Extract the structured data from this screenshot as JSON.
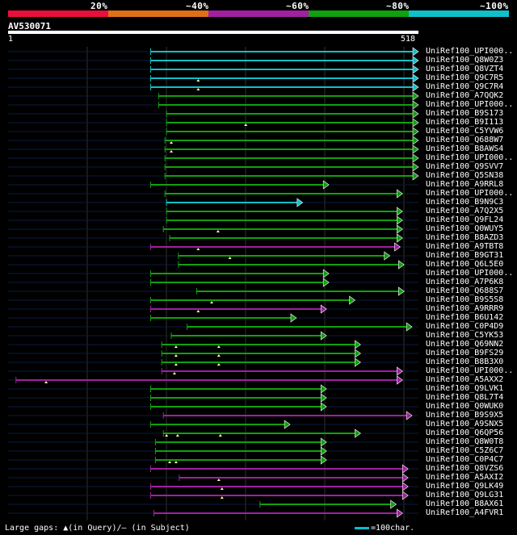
{
  "legend": [
    {
      "label": "20%",
      "color": "#e8103a"
    },
    {
      "label": "~40%",
      "color": "#e07018"
    },
    {
      "label": "~60%",
      "color": "#a020a0"
    },
    {
      "label": "~80%",
      "color": "#10a010"
    },
    {
      "label": "~100%",
      "color": "#10c0c8"
    }
  ],
  "query": {
    "id": "AV530071",
    "start": "1",
    "end": "518",
    "length": 518
  },
  "colors": {
    "background": "#000000",
    "guide": "#0a1a40",
    "grid": "#303030",
    "query_bar": "#ffffff"
  },
  "hits": [
    {
      "label": "UniRef100_UPI000..",
      "color": "#10c0c8",
      "start": 180,
      "end": 518,
      "gaps": []
    },
    {
      "label": "UniRef100_Q8W0Z3",
      "color": "#10c0c8",
      "start": 180,
      "end": 518,
      "gaps": []
    },
    {
      "label": "UniRef100_Q8VZT4",
      "color": "#10c0c8",
      "start": 180,
      "end": 518,
      "gaps": []
    },
    {
      "label": "UniRef100_Q9C7R5",
      "color": "#10c0c8",
      "start": 180,
      "end": 518,
      "gaps": [
        240
      ]
    },
    {
      "label": "UniRef100_Q9C7R4",
      "color": "#10c0c8",
      "start": 180,
      "end": 518,
      "gaps": [
        240
      ]
    },
    {
      "label": "UniRef100_A7QQK2",
      "color": "#10a010",
      "start": 190,
      "end": 518,
      "gaps": []
    },
    {
      "label": "UniRef100_UPI000..",
      "color": "#10a010",
      "start": 190,
      "end": 518,
      "gaps": []
    },
    {
      "label": "UniRef100_B9S173",
      "color": "#10a010",
      "start": 200,
      "end": 518,
      "gaps": []
    },
    {
      "label": "UniRef100_B9I113",
      "color": "#10a010",
      "start": 200,
      "end": 518,
      "gaps": [
        300
      ]
    },
    {
      "label": "UniRef100_C5YVW6",
      "color": "#10a010",
      "start": 200,
      "end": 518,
      "gaps": []
    },
    {
      "label": "UniRef100_Q688W7",
      "color": "#10a010",
      "start": 198,
      "end": 518,
      "gaps": [
        206
      ]
    },
    {
      "label": "UniRef100_B8AWS4",
      "color": "#10a010",
      "start": 198,
      "end": 518,
      "gaps": [
        206
      ]
    },
    {
      "label": "UniRef100_UPI000..",
      "color": "#10a010",
      "start": 198,
      "end": 518,
      "gaps": []
    },
    {
      "label": "UniRef100_Q9SVV7",
      "color": "#10a010",
      "start": 198,
      "end": 518,
      "gaps": []
    },
    {
      "label": "UniRef100_Q5SN38",
      "color": "#10a010",
      "start": 198,
      "end": 518,
      "gaps": []
    },
    {
      "label": "UniRef100_A9RRL8",
      "color": "#10a010",
      "start": 180,
      "end": 405,
      "gaps": []
    },
    {
      "label": "UniRef100_UPI000..",
      "color": "#10a010",
      "start": 198,
      "end": 498,
      "gaps": []
    },
    {
      "label": "UniRef100_B9N9C3",
      "color": "#10c0c8",
      "start": 200,
      "end": 372,
      "gaps": []
    },
    {
      "label": "UniRef100_A7Q2X5",
      "color": "#10a010",
      "start": 200,
      "end": 498,
      "gaps": []
    },
    {
      "label": "UniRef100_Q9FL24",
      "color": "#10a010",
      "start": 200,
      "end": 498,
      "gaps": []
    },
    {
      "label": "UniRef100_Q0WUY5",
      "color": "#10a010",
      "start": 196,
      "end": 498,
      "gaps": [
        265
      ]
    },
    {
      "label": "UniRef100_B8AZD3",
      "color": "#10a010",
      "start": 204,
      "end": 498,
      "gaps": []
    },
    {
      "label": "UniRef100_A9TBT8",
      "color": "#a020a0",
      "start": 180,
      "end": 495,
      "gaps": [
        240
      ]
    },
    {
      "label": "UniRef100_B9GT31",
      "color": "#10a010",
      "start": 215,
      "end": 482,
      "gaps": [
        280
      ]
    },
    {
      "label": "UniRef100_Q6L5E0",
      "color": "#10a010",
      "start": 215,
      "end": 500,
      "gaps": []
    },
    {
      "label": "UniRef100_UPI000..",
      "color": "#10a010",
      "start": 180,
      "end": 405,
      "gaps": []
    },
    {
      "label": "UniRef100_A7P6K8",
      "color": "#10a010",
      "start": 180,
      "end": 405,
      "gaps": []
    },
    {
      "label": "UniRef100_Q688S7",
      "color": "#10a010",
      "start": 238,
      "end": 500,
      "gaps": []
    },
    {
      "label": "UniRef100_B9S5S8",
      "color": "#10a010",
      "start": 180,
      "end": 438,
      "gaps": [
        257
      ]
    },
    {
      "label": "UniRef100_A9RRR9",
      "color": "#a020a0",
      "start": 180,
      "end": 402,
      "gaps": [
        240
      ]
    },
    {
      "label": "UniRef100_B6U142",
      "color": "#10a010",
      "start": 180,
      "end": 364,
      "gaps": []
    },
    {
      "label": "UniRef100_C0P4D9",
      "color": "#10a010",
      "start": 226,
      "end": 510,
      "gaps": []
    },
    {
      "label": "UniRef100_C5YK53",
      "color": "#10a010",
      "start": 206,
      "end": 402,
      "gaps": []
    },
    {
      "label": "UniRef100_Q69NN2",
      "color": "#10a010",
      "start": 194,
      "end": 445,
      "gaps": [
        212,
        266
      ]
    },
    {
      "label": "UniRef100_B9FS29",
      "color": "#10a010",
      "start": 194,
      "end": 445,
      "gaps": [
        212,
        266
      ]
    },
    {
      "label": "UniRef100_B8B3X0",
      "color": "#10a010",
      "start": 194,
      "end": 445,
      "gaps": [
        212,
        266
      ]
    },
    {
      "label": "UniRef100_UPI000..",
      "color": "#a020a0",
      "start": 194,
      "end": 498,
      "gaps": [
        210
      ]
    },
    {
      "label": "UniRef100_A5AXX2",
      "color": "#a020a0",
      "start": 10,
      "end": 498,
      "gaps": [
        48
      ]
    },
    {
      "label": "UniRef100_Q9LVK1",
      "color": "#10a010",
      "start": 180,
      "end": 402,
      "gaps": []
    },
    {
      "label": "UniRef100_Q8L7T4",
      "color": "#10a010",
      "start": 180,
      "end": 402,
      "gaps": []
    },
    {
      "label": "UniRef100_Q0WUK0",
      "color": "#10a010",
      "start": 180,
      "end": 402,
      "gaps": []
    },
    {
      "label": "UniRef100_B9S9X5",
      "color": "#a020a0",
      "start": 196,
      "end": 510,
      "gaps": []
    },
    {
      "label": "UniRef100_A9SNX5",
      "color": "#10a010",
      "start": 180,
      "end": 356,
      "gaps": []
    },
    {
      "label": "UniRef100_Q6QP56",
      "color": "#10a010",
      "start": 196,
      "end": 445,
      "gaps": [
        200,
        214,
        268
      ]
    },
    {
      "label": "UniRef100_Q8W0T8",
      "color": "#10a010",
      "start": 186,
      "end": 402,
      "gaps": []
    },
    {
      "label": "UniRef100_C5Z6C7",
      "color": "#10a010",
      "start": 186,
      "end": 402,
      "gaps": []
    },
    {
      "label": "UniRef100_C0P4C7",
      "color": "#10a010",
      "start": 186,
      "end": 402,
      "gaps": [
        204,
        212
      ]
    },
    {
      "label": "UniRef100_Q8VZS6",
      "color": "#a020a0",
      "start": 180,
      "end": 505,
      "gaps": []
    },
    {
      "label": "UniRef100_A5AXI2",
      "color": "#a020a0",
      "start": 216,
      "end": 505,
      "gaps": [
        266
      ]
    },
    {
      "label": "UniRef100_Q9LK49",
      "color": "#a020a0",
      "start": 180,
      "end": 505,
      "gaps": [
        270
      ]
    },
    {
      "label": "UniRef100_Q9LG31",
      "color": "#a020a0",
      "start": 180,
      "end": 505,
      "gaps": [
        270
      ]
    },
    {
      "label": "UniRef100_B8AX61",
      "color": "#10a010",
      "start": 318,
      "end": 490,
      "gaps": []
    },
    {
      "label": "UniRef100_A4FVR1",
      "color": "#a020a0",
      "start": 184,
      "end": 498,
      "gaps": []
    }
  ],
  "footer": {
    "gaps": "Large gaps: ▲(in Query)/– (in Subject)",
    "scale": "=100char."
  }
}
